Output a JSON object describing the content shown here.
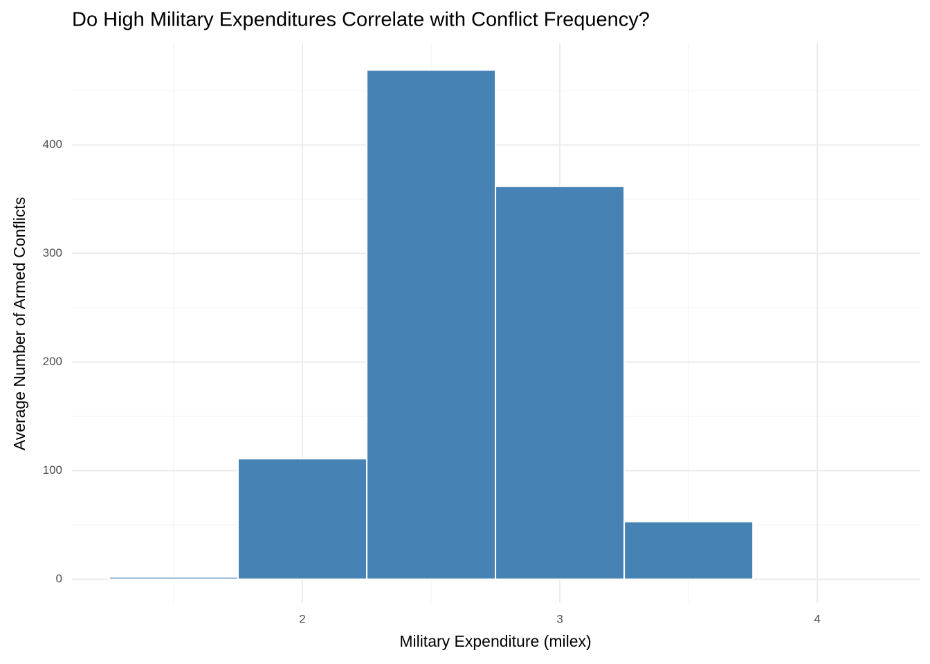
{
  "chart_data": {
    "type": "histogram",
    "title": "Do High Military Expenditures Correlate with Conflict Frequency?",
    "x_label": "Military Expenditure (milex)",
    "y_label": "Average Number of Armed Conflicts",
    "bins": [
      1.25,
      1.75,
      2.25,
      2.75,
      3.25,
      3.75,
      4.25
    ],
    "values": [
      2,
      111,
      469,
      362,
      53,
      0
    ],
    "color": "#4682b4",
    "xlim": [
      1.105,
      4.4
    ],
    "xticks": [
      2,
      3,
      4
    ],
    "ylim": [
      -22,
      494
    ],
    "yticks": [
      0,
      100,
      200,
      300,
      400
    ],
    "grid": true
  }
}
